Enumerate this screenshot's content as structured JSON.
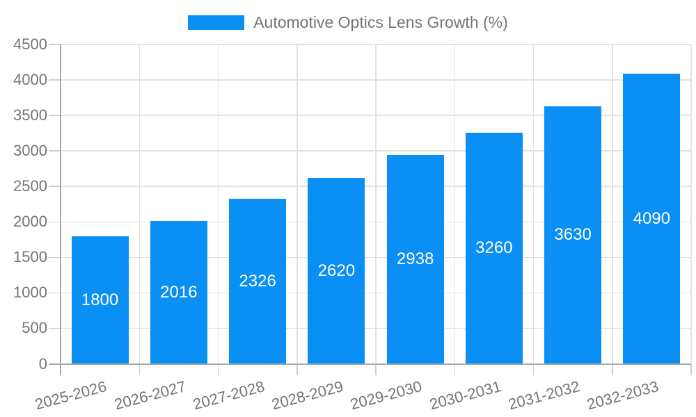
{
  "legend": {
    "label": "Automotive Optics Lens Growth (%)"
  },
  "colors": {
    "bar": "#0a8ff5",
    "bar_label": "#ffffff",
    "grid": "#e2e2e2",
    "axis": "#a8a8a8",
    "tick": "#cfcfcf",
    "text": "#757575",
    "background": "#ffffff"
  },
  "chart_data": {
    "type": "bar",
    "title": "Automotive Optics Lens Growth (%)",
    "categories": [
      "2025-2026",
      "2026-2027",
      "2027-2028",
      "2028-2029",
      "2029-2030",
      "2030-2031",
      "2031-2032",
      "2032-2033"
    ],
    "values": [
      1800,
      2016,
      2326,
      2620,
      2938,
      3260,
      3630,
      4090
    ],
    "series": [
      {
        "name": "Automotive Optics Lens Growth (%)",
        "values": [
          1800,
          2016,
          2326,
          2620,
          2938,
          3260,
          3630,
          4090
        ]
      }
    ],
    "xlabel": "",
    "ylabel": "",
    "ylim": [
      0,
      4500
    ],
    "ytick_step": 500,
    "yticks": [
      0,
      500,
      1000,
      1500,
      2000,
      2500,
      3000,
      3500,
      4000,
      4500
    ],
    "grid": true,
    "legend_position": "top-center",
    "value_labels": "inside-center",
    "x_label_rotation": -15
  }
}
